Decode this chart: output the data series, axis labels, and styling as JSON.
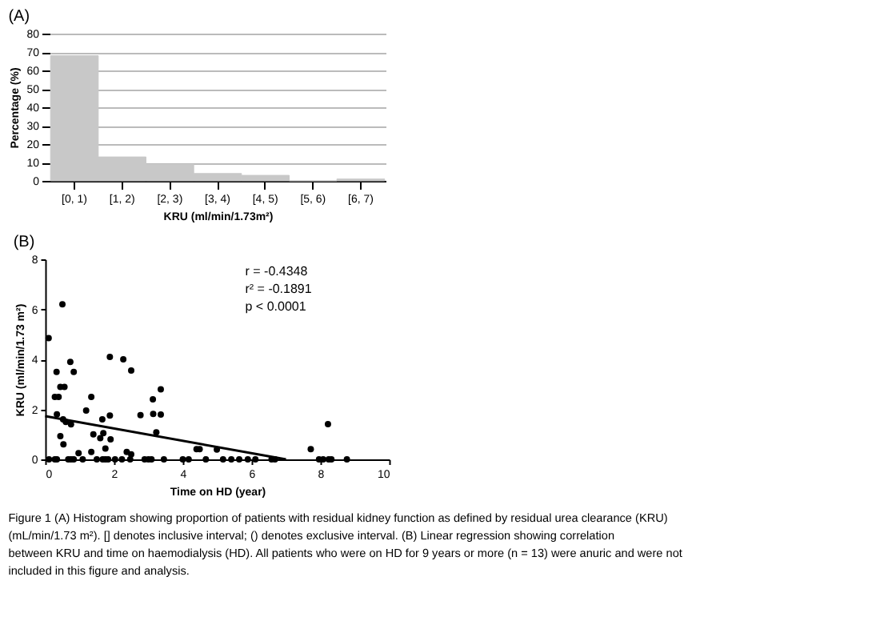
{
  "chart_data": [
    {
      "type": "bar",
      "title": "(A)",
      "xlabel": "KRU (ml/min/1.73m²)",
      "ylabel": "Percentage (%)",
      "categories": [
        "[0, 1)",
        "[1, 2)",
        "[2, 3)",
        "[3, 4)",
        "[4, 5)",
        "[5, 6)",
        "[6, 7)"
      ],
      "values": [
        68,
        13,
        9,
        4,
        3,
        0,
        1
      ],
      "color": "#c8c8c8",
      "ylim": [
        0,
        80
      ],
      "yticks": [
        0,
        10,
        20,
        30,
        40,
        50,
        60,
        70,
        80
      ],
      "grid": "y"
    },
    {
      "type": "scatter",
      "title": "(B)",
      "xlabel": "Time on HD (year)",
      "ylabel": "KRU (ml/min/1.73 m²)",
      "series": [
        {
          "type": "scatter",
          "color": "#000000",
          "marker": "circle",
          "x": [
            0.1,
            0.5,
            0.33,
            0.28,
            0.39,
            0.44,
            0.56,
            0.34,
            0.52,
            0.6,
            0.44,
            0.53,
            0.73,
            0.83,
            0.75,
            0.97,
            1.19,
            1.34,
            1.4,
            1.34,
            1.6,
            1.69,
            1.66,
            1.75,
            1.88,
            1.88,
            1.9,
            2.27,
            2.37,
            2.5,
            2.5,
            2.77,
            3.13,
            3.14,
            3.23,
            3.36,
            3.36,
            4.4,
            4.49,
            4.99,
            7.72,
            8.22,
            0.11,
            0.28,
            0.34,
            0.67,
            0.75,
            0.83,
            1.09,
            1.5,
            1.67,
            1.75,
            1.83,
            2.03,
            2.23,
            2.47,
            2.89,
            3.0,
            3.09,
            3.45,
            4.0,
            4.17,
            4.67,
            5.17,
            5.41,
            5.64,
            5.89,
            6.11,
            6.58,
            6.68,
            7.96,
            8.08,
            8.24,
            8.32,
            8.77
          ],
          "values": [
            4.85,
            6.2,
            3.5,
            2.5,
            2.5,
            2.9,
            2.9,
            1.8,
            1.6,
            1.5,
            0.93,
            0.6,
            3.9,
            3.5,
            1.4,
            0.25,
            1.95,
            2.5,
            1.0,
            0.3,
            0.85,
            1.05,
            1.6,
            0.43,
            1.75,
            4.1,
            0.8,
            4.0,
            0.3,
            0.2,
            3.55,
            1.77,
            2.4,
            1.82,
            1.08,
            2.8,
            1.79,
            0.41,
            0.41,
            0.39,
            0.41,
            1.41,
            0,
            0,
            0,
            0,
            0,
            0,
            0,
            0,
            0,
            0,
            0,
            0,
            0,
            0,
            0,
            0,
            0,
            0,
            0,
            0,
            0,
            0,
            0,
            0,
            0,
            0,
            0,
            0,
            0,
            0,
            0,
            0,
            0
          ]
        },
        {
          "type": "line",
          "color": "#000000",
          "line_style": "solid",
          "x": [
            0,
            7
          ],
          "values": [
            1.73,
            0
          ]
        }
      ],
      "xlim": [
        0,
        10
      ],
      "xticks": [
        0,
        2,
        4,
        6,
        8,
        10
      ],
      "ylim": [
        0,
        8
      ],
      "yticks": [
        0,
        2,
        4,
        6,
        8
      ],
      "grid": false,
      "annotations": [
        "r = -0.4348",
        "r² = -0.1891",
        "p < 0.0001",
        "Figure 1 (A) Histogram showing proportion of patients with residual kidney function as defined by residual urea clearance (KRU) (mL/min/1.73 m²). [] denotes inclusive interval; () denotes exclusive interval. (B) Linear regression showing correlation between KRU and time on haemodialysis (HD). All patients who were on HD for 9 years or more (n = 13) were anuric and were not included in this figure and analysis."
      ]
    }
  ]
}
